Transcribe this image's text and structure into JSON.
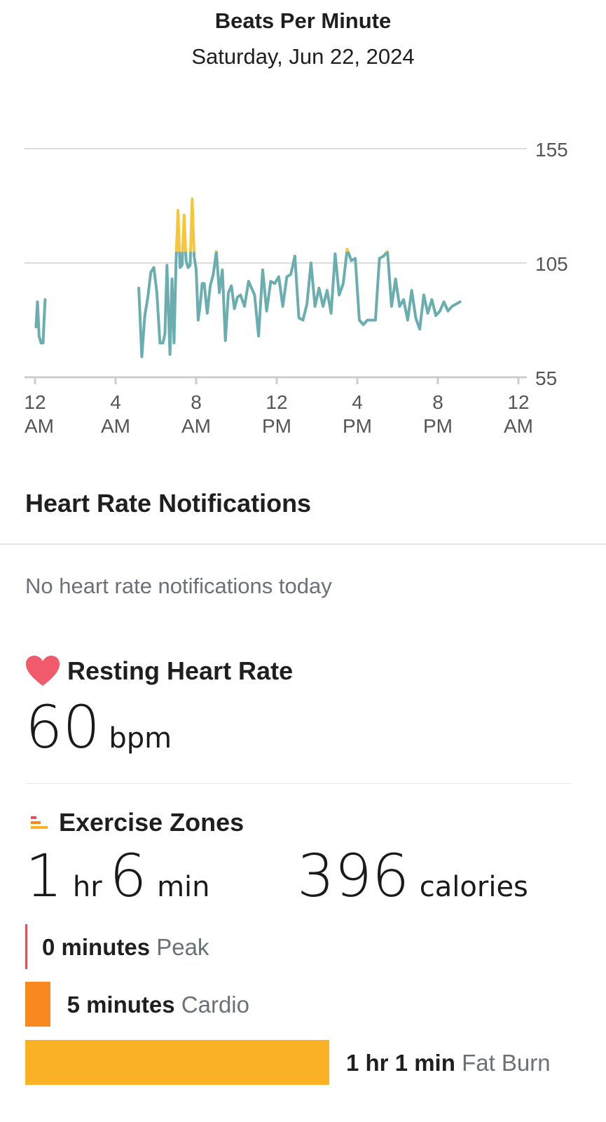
{
  "header": {
    "title": "Beats Per Minute",
    "date": "Saturday, Jun 22, 2024"
  },
  "chart_data": {
    "type": "line",
    "title": "Beats Per Minute",
    "x_unit": "hours since 12 AM",
    "xlim": [
      0,
      24
    ],
    "ylim": [
      55,
      155
    ],
    "y_ticks": [
      55,
      105,
      155
    ],
    "x_ticks": [
      {
        "line1": "12",
        "line2": "AM"
      },
      {
        "line1": "4",
        "line2": "AM"
      },
      {
        "line1": "8",
        "line2": "AM"
      },
      {
        "line1": "12",
        "line2": "PM"
      },
      {
        "line1": "4",
        "line2": "PM"
      },
      {
        "line1": "8",
        "line2": "PM"
      },
      {
        "line1": "12",
        "line2": "AM"
      }
    ],
    "grid": true,
    "zone_threshold": 110,
    "peak_threshold": 134,
    "colors": {
      "normal": "#6aaeb0",
      "fatburn": "#f5c63c",
      "cardio": "#f0883a",
      "axis": "#cccccc",
      "grid": "#dddddd"
    },
    "segments": [
      {
        "x": [
          0.05,
          0.12,
          0.2,
          0.3,
          0.4,
          0.45,
          0.5
        ],
        "y": [
          77,
          88,
          73,
          70,
          70,
          80,
          89
        ]
      },
      {
        "x": [
          5.15,
          5.3,
          5.45,
          5.6,
          5.75,
          5.9,
          6.05,
          6.2,
          6.35,
          6.45,
          6.55,
          6.7,
          6.8,
          6.9,
          7.0,
          7.1,
          7.2,
          7.3,
          7.4,
          7.5,
          7.6,
          7.7,
          7.8,
          7.9,
          8.0,
          8.1,
          8.2,
          8.3,
          8.4,
          8.55,
          8.7,
          8.85,
          9.0,
          9.15,
          9.3,
          9.45,
          9.6,
          9.75,
          9.9,
          10.05,
          10.2,
          10.4,
          10.6,
          10.75,
          10.9,
          11.1,
          11.3,
          11.5,
          11.7,
          11.9,
          12.1,
          12.3,
          12.5,
          12.7,
          12.9,
          13.1,
          13.3,
          13.5,
          13.7,
          13.9,
          14.1,
          14.3,
          14.5,
          14.7,
          14.9,
          15.1,
          15.3,
          15.5,
          15.7,
          15.9,
          16.1,
          16.3,
          16.5,
          16.7,
          16.9,
          17.1,
          17.3,
          17.5,
          17.7,
          17.9,
          18.1,
          18.3,
          18.5,
          18.7,
          18.9,
          19.1,
          19.3,
          19.5,
          19.7,
          19.9,
          20.1,
          20.3,
          20.5,
          20.7,
          20.9,
          21.1
        ],
        "y": [
          94,
          64,
          82,
          90,
          101,
          103,
          92,
          70,
          70,
          74,
          104,
          65,
          98,
          70,
          106,
          128,
          103,
          104,
          126,
          106,
          103,
          104,
          133,
          108,
          102,
          80,
          87,
          96,
          96,
          83,
          95,
          100,
          110,
          92,
          102,
          71,
          92,
          95,
          85,
          90,
          91,
          86,
          97,
          94,
          91,
          73,
          102,
          84,
          97,
          96,
          99,
          86,
          99,
          100,
          108,
          81,
          80,
          87,
          105,
          86,
          94,
          86,
          93,
          83,
          109,
          91,
          96,
          111,
          106,
          107,
          80,
          78,
          80,
          80,
          80,
          107,
          108,
          110,
          86,
          98,
          86,
          89,
          80,
          93,
          81,
          76,
          91,
          83,
          89,
          82,
          84,
          88,
          84,
          86,
          87,
          88
        ]
      }
    ]
  },
  "notifications": {
    "heading": "Heart Rate Notifications",
    "empty_text": "No heart rate notifications today"
  },
  "resting": {
    "heading": "Resting Heart Rate",
    "value": "60",
    "unit": "bpm",
    "icon": "heart-icon",
    "icon_color": "#f05a6a"
  },
  "exercise": {
    "heading": "Exercise Zones",
    "icon": "zones-bars-icon",
    "duration_hr": "1",
    "hr_label": "hr",
    "duration_min": "6",
    "min_label": "min",
    "calories": "396",
    "calories_label": "calories",
    "zones": [
      {
        "amount": "0 minutes",
        "name": "Peak",
        "minutes": 0,
        "color": "#e0525a"
      },
      {
        "amount": "5 minutes",
        "name": "Cardio",
        "minutes": 5,
        "color": "#f7891f"
      },
      {
        "amount": "1 hr 1 min",
        "name": "Fat Burn",
        "minutes": 61,
        "color": "#fbb125"
      }
    ]
  }
}
